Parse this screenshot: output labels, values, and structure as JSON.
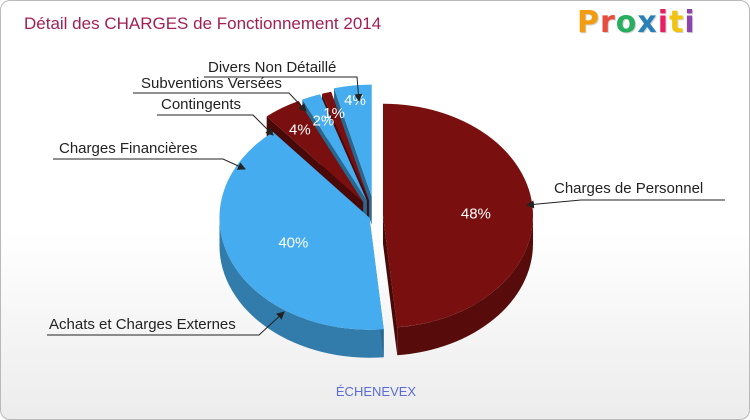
{
  "header": {
    "title": "Détail des CHARGES de Fonctionnement 2014",
    "logo_text": "Proxiti",
    "logo_colors": [
      "#f39c12",
      "#e74c3c",
      "#27ae60",
      "#2980b9",
      "#e91e63",
      "#f1c40f",
      "#8e44ad"
    ]
  },
  "footer": {
    "commune": "ÉCHENEVEX"
  },
  "colors": {
    "title": "#a21f55",
    "dark_red": "#7a0f0f",
    "blue": "#45acef",
    "leader": "#222222"
  },
  "chart_data": {
    "type": "pie",
    "title": "Détail des CHARGES de Fonctionnement 2014",
    "subtitle": "ÉCHENEVEX",
    "slices": [
      {
        "label": "Charges de Personnel",
        "value": 48,
        "pct_label": "48%",
        "color": "#7a0f0f"
      },
      {
        "label": "Achats et Charges Externes",
        "value": 40,
        "pct_label": "40%",
        "color": "#45acef"
      },
      {
        "label": "Charges Financières",
        "value": 4,
        "pct_label": "4%",
        "color": "#7a0f0f"
      },
      {
        "label": "Contingents",
        "value": 2,
        "pct_label": "2%",
        "color": "#45acef"
      },
      {
        "label": "Subventions Versées",
        "value": 1,
        "pct_label": "1%",
        "color": "#7a0f0f"
      },
      {
        "label": "Divers Non Détaillé",
        "value": 4,
        "pct_label": "4%",
        "color": "#45acef"
      }
    ]
  }
}
